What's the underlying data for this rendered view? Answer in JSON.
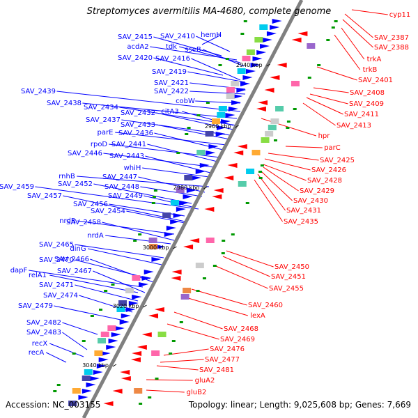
{
  "title": "Streptomyces avermitilis MA-4680, complete genome",
  "footer": {
    "accession": "Accession: NC_003155",
    "summary": "Topology: linear; Length: 9,025,608 bp; Genes: 7,669"
  },
  "colors": {
    "forward_label": "#0000ff",
    "reverse_label": "#ff0000",
    "backbone": "#808080",
    "forward_feature": "#0000ff",
    "reverse_feature": "#ff0000",
    "small_feature": "#009900"
  },
  "kbp_ticks": [
    "2940 kbp",
    "2960 kbp",
    "2980 kbp",
    "3000 kbp",
    "3020 kbp",
    "3040 kbp"
  ],
  "forward_labels": [
    "hemH",
    "SAV_2410",
    "SAV_2415",
    "acdA2",
    "tdk",
    "sseB",
    "SAV_2420",
    "SAV_2416",
    "SAV_2419",
    "SAV_2421",
    "SAV_2422",
    "cobW",
    "SAV_2439",
    "SAV_2438",
    "SAV_2434",
    "SAV_2432",
    "citA3",
    "SAV_2437",
    "SAV_2433",
    "parE",
    "SAV_2436",
    "rpoD",
    "SAV_2441",
    "SAV_2446",
    "SAV_2443",
    "whiH",
    "rnhB",
    "SAV_2447",
    "SAV_2448",
    "SAV_2459",
    "SAV_2452",
    "SAV_2449",
    "SAV_2457",
    "SAV_2456",
    "SAV_2454",
    "nrdR",
    "SAV_2458",
    "nrdA",
    "SAV_2465",
    "dinG",
    "SAV_2470",
    "SAV_2466",
    "relA1",
    "dapF",
    "SAV_2467",
    "SAV_2471",
    "SAV_2474",
    "SAV_2479",
    "SAV_2482",
    "SAV_2483",
    "recX",
    "recA"
  ],
  "reverse_labels": [
    "cyp11",
    "SAV_2387",
    "SAV_2388",
    "trkA",
    "trkB",
    "SAV_2401",
    "SAV_2408",
    "SAV_2409",
    "SAV_2411",
    "SAV_2413",
    "hpr",
    "parC",
    "SAV_2425",
    "SAV_2426",
    "SAV_2428",
    "SAV_2429",
    "SAV_2430",
    "SAV_2431",
    "SAV_2435",
    "SAV_2450",
    "SAV_2451",
    "SAV_2455",
    "SAV_2460",
    "lexA",
    "SAV_2468",
    "SAV_2469",
    "SAV_2476",
    "SAV_2477",
    "SAV_2481",
    "gluA2",
    "gluB2"
  ]
}
